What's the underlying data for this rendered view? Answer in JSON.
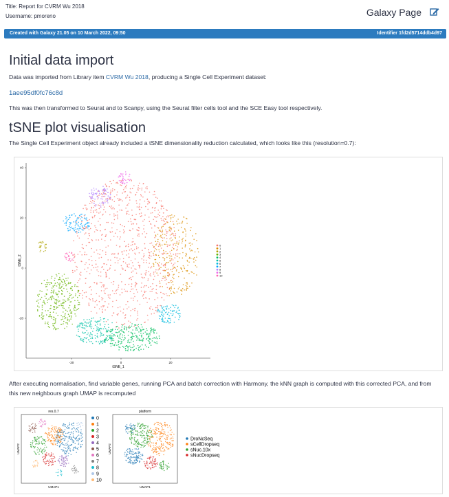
{
  "header": {
    "title_line": "Title: Report for CVRM Wu 2018",
    "username": "Username: pmoreno",
    "page_title": "Galaxy Page"
  },
  "banner": {
    "created": "Created with Galaxy 21.05 on 10 March 2022, 09:50",
    "identifier": "Identifier 1fd2d5714ddb4d97"
  },
  "section1": {
    "heading": "Initial data import",
    "para1": {
      "before": "Data was imported from Library item ",
      "link": "CVRM Wu 2018",
      "after": ", producing a Single Cell Experiment dataset:"
    },
    "dataset_link": "1aee95df0fc76c8d",
    "para2": "This was then transformed to Seurat and to Scanpy, using the Seurat filter cells tool and the SCE Easy tool respectively."
  },
  "section2": {
    "heading": "tSNE plot visualisation",
    "para1": "The Single Cell Experiment object already included a tSNE dimensionality reduction calculated, which looks like this (resolution=0.7):",
    "para2": "After executing normalisation, find variable genes, running PCA and batch correction with Harmony, the kNN graph is computed with this corrected PCA, and from this new neighbours graph UMAP is recomputed"
  },
  "tsne_plot": {
    "x_label": "tSNE_1",
    "y_label": "tSNE_2",
    "xticks": [
      -20,
      0,
      20
    ],
    "yticks": [
      40,
      20,
      0,
      -20
    ],
    "legend": [
      "0",
      "1",
      "2",
      "3",
      "4",
      "5",
      "6",
      "7",
      "8",
      "9",
      "10"
    ],
    "colors": [
      "#F8766D",
      "#DB8E00",
      "#AEA200",
      "#64B200",
      "#00BD5C",
      "#00C1A7",
      "#00BADE",
      "#00A6FF",
      "#B385FF",
      "#EF67EB",
      "#FF63B6"
    ]
  },
  "umap_plot": {
    "panel1_title": "res.0.7",
    "panel2_title": "platform",
    "x_label": "UMAP1",
    "y_label": "UMAP2",
    "legend1": [
      "0",
      "1",
      "2",
      "3",
      "4",
      "5",
      "6",
      "7",
      "8",
      "9",
      "10"
    ],
    "colors1": [
      "#1f77b4",
      "#ff7f0e",
      "#2ca02c",
      "#d62728",
      "#9467bd",
      "#8c564b",
      "#e377c2",
      "#7f7f7f",
      "#17becf",
      "#aec7e8",
      "#ffbb78"
    ],
    "legend2": [
      "DroNcSeq",
      "sCellDropseq",
      "sNuc.10x",
      "sNucDropseq"
    ],
    "colors2": [
      "#1f77b4",
      "#ff7f0e",
      "#2ca02c",
      "#d62728"
    ]
  }
}
